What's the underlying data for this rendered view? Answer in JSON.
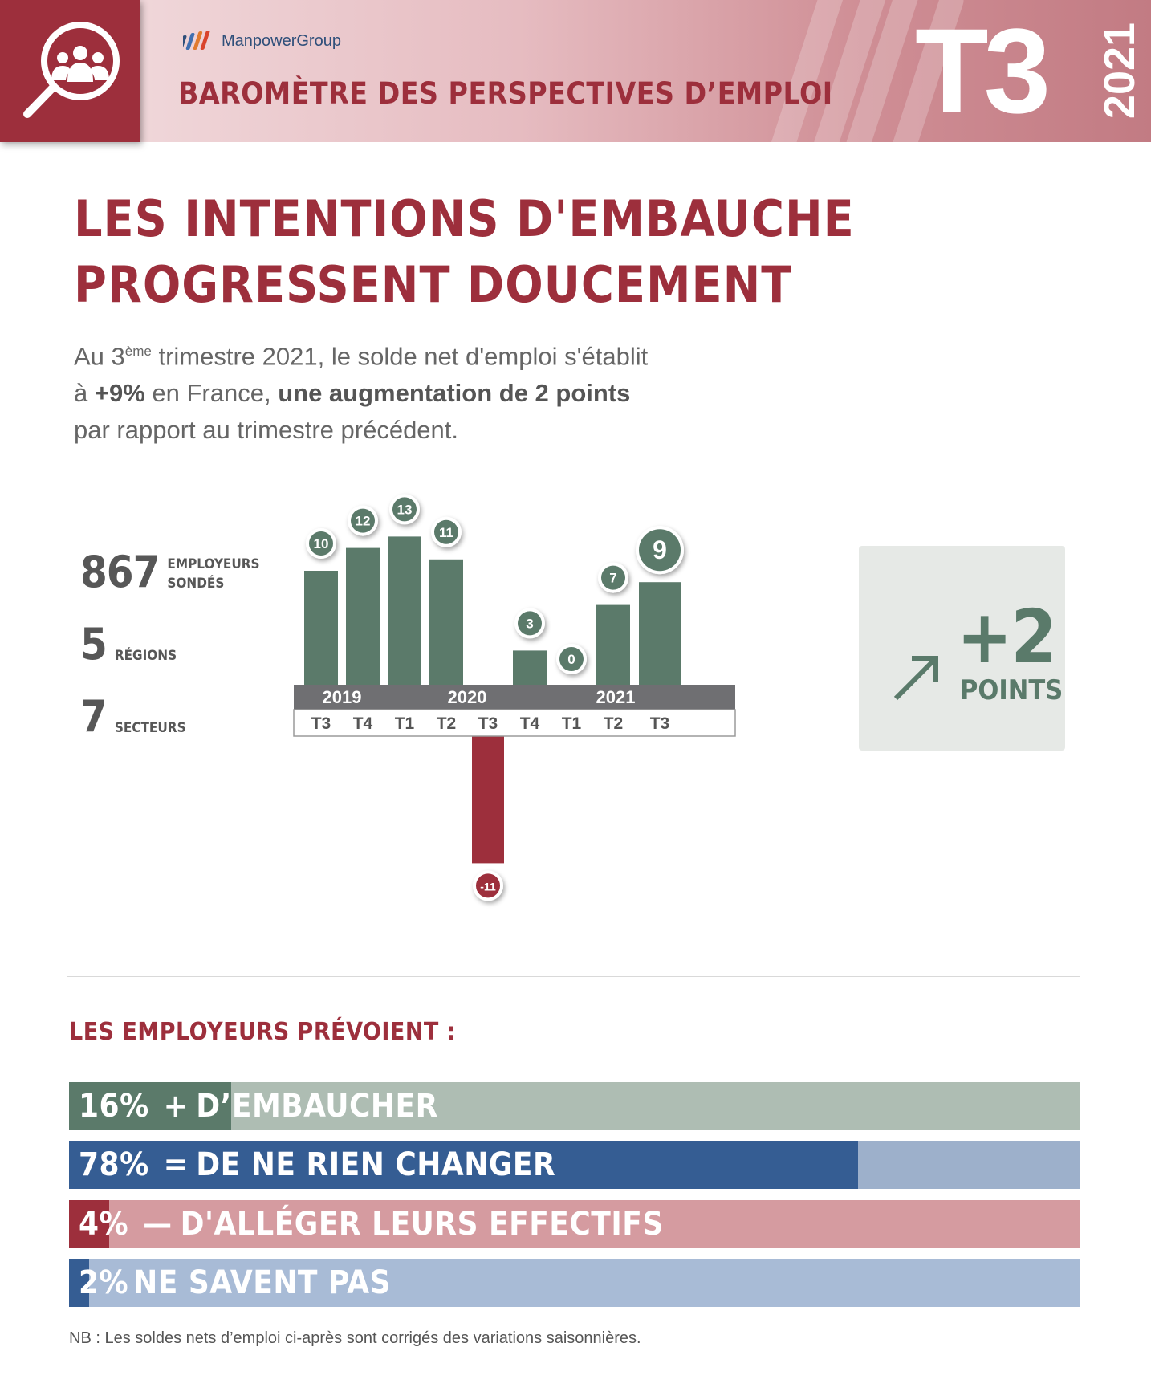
{
  "header": {
    "brand": "ManpowerGroup",
    "title": "BAROMÈTRE DES PERSPECTIVES D’EMPLOI",
    "quarter": "T3",
    "year": "2021",
    "icon": "magnifier-people-icon"
  },
  "headline": {
    "line1": "LES INTENTIONS D'EMBAUCHE",
    "line2": "PROGRESSENT DOUCEMENT"
  },
  "intro": {
    "p1": "Au 3",
    "p1_sup": "ème",
    "p1_rest": " trimestre 2021, le solde net d'emploi s'établit",
    "p2_pre": "à ",
    "p2_bold1": "+9%",
    "p2_mid": " en France, ",
    "p2_bold2": "une augmentation de 2 points",
    "p3": "par rapport au trimestre précédent."
  },
  "stats": [
    {
      "value": "867",
      "label1": "EMPLOYEURS",
      "label2": "SONDÉS"
    },
    {
      "value": "5",
      "label1": "RÉGIONS",
      "label2": ""
    },
    {
      "value": "7",
      "label1": "SECTEURS",
      "label2": ""
    }
  ],
  "chart_data": {
    "type": "bar",
    "title": "",
    "xlabel": "",
    "ylabel": "",
    "categories": [
      "T3",
      "T4",
      "T1",
      "T2",
      "T3",
      "T4",
      "T1",
      "T2",
      "T3"
    ],
    "years": [
      {
        "label": "2019",
        "span": [
          0,
          1
        ]
      },
      {
        "label": "2020",
        "span": [
          2,
          5
        ]
      },
      {
        "label": "2021",
        "span": [
          6,
          8
        ]
      }
    ],
    "values": [
      10,
      12,
      13,
      11,
      -11,
      3,
      0,
      7,
      9
    ],
    "value_labels": [
      "10",
      "12",
      "13",
      "11",
      "-11",
      "3",
      "0",
      "7",
      "9"
    ],
    "highlight_index": 8,
    "colors": {
      "positive": "#5b7a6a",
      "negative": "#9d2f3c",
      "year_band": "#6f6f72"
    },
    "ylim": [
      -11,
      13
    ],
    "grid": false,
    "legend": "none"
  },
  "delta": {
    "value": "+2",
    "unit": "POINTS",
    "icon": "arrow-up-right-icon"
  },
  "plans": {
    "title": "LES EMPLOYEURS PRÉVOIENT :",
    "items": [
      {
        "pct": "16%",
        "sym": "+",
        "label": "D’EMBAUCHER",
        "value": 16,
        "fill": "#5b7a6a",
        "track": "#aebdb3"
      },
      {
        "pct": "78%",
        "sym": "=",
        "label": "DE NE RIEN CHANGER",
        "value": 78,
        "fill": "#355d93",
        "track": "#9db0cb"
      },
      {
        "pct": "4%",
        "sym": "—",
        "label": "D'ALLÉGER LEURS EFFECTIFS",
        "value": 4,
        "fill": "#9d2f3c",
        "track": "#d59ba0"
      },
      {
        "pct": "2%",
        "sym": "",
        "label": "NE SAVENT PAS",
        "value": 2,
        "fill": "#355d93",
        "track": "#a8bbd6"
      }
    ]
  },
  "footnote": "NB : Les soldes nets d’emploi ci-après sont corrigés des variations saisonnières."
}
